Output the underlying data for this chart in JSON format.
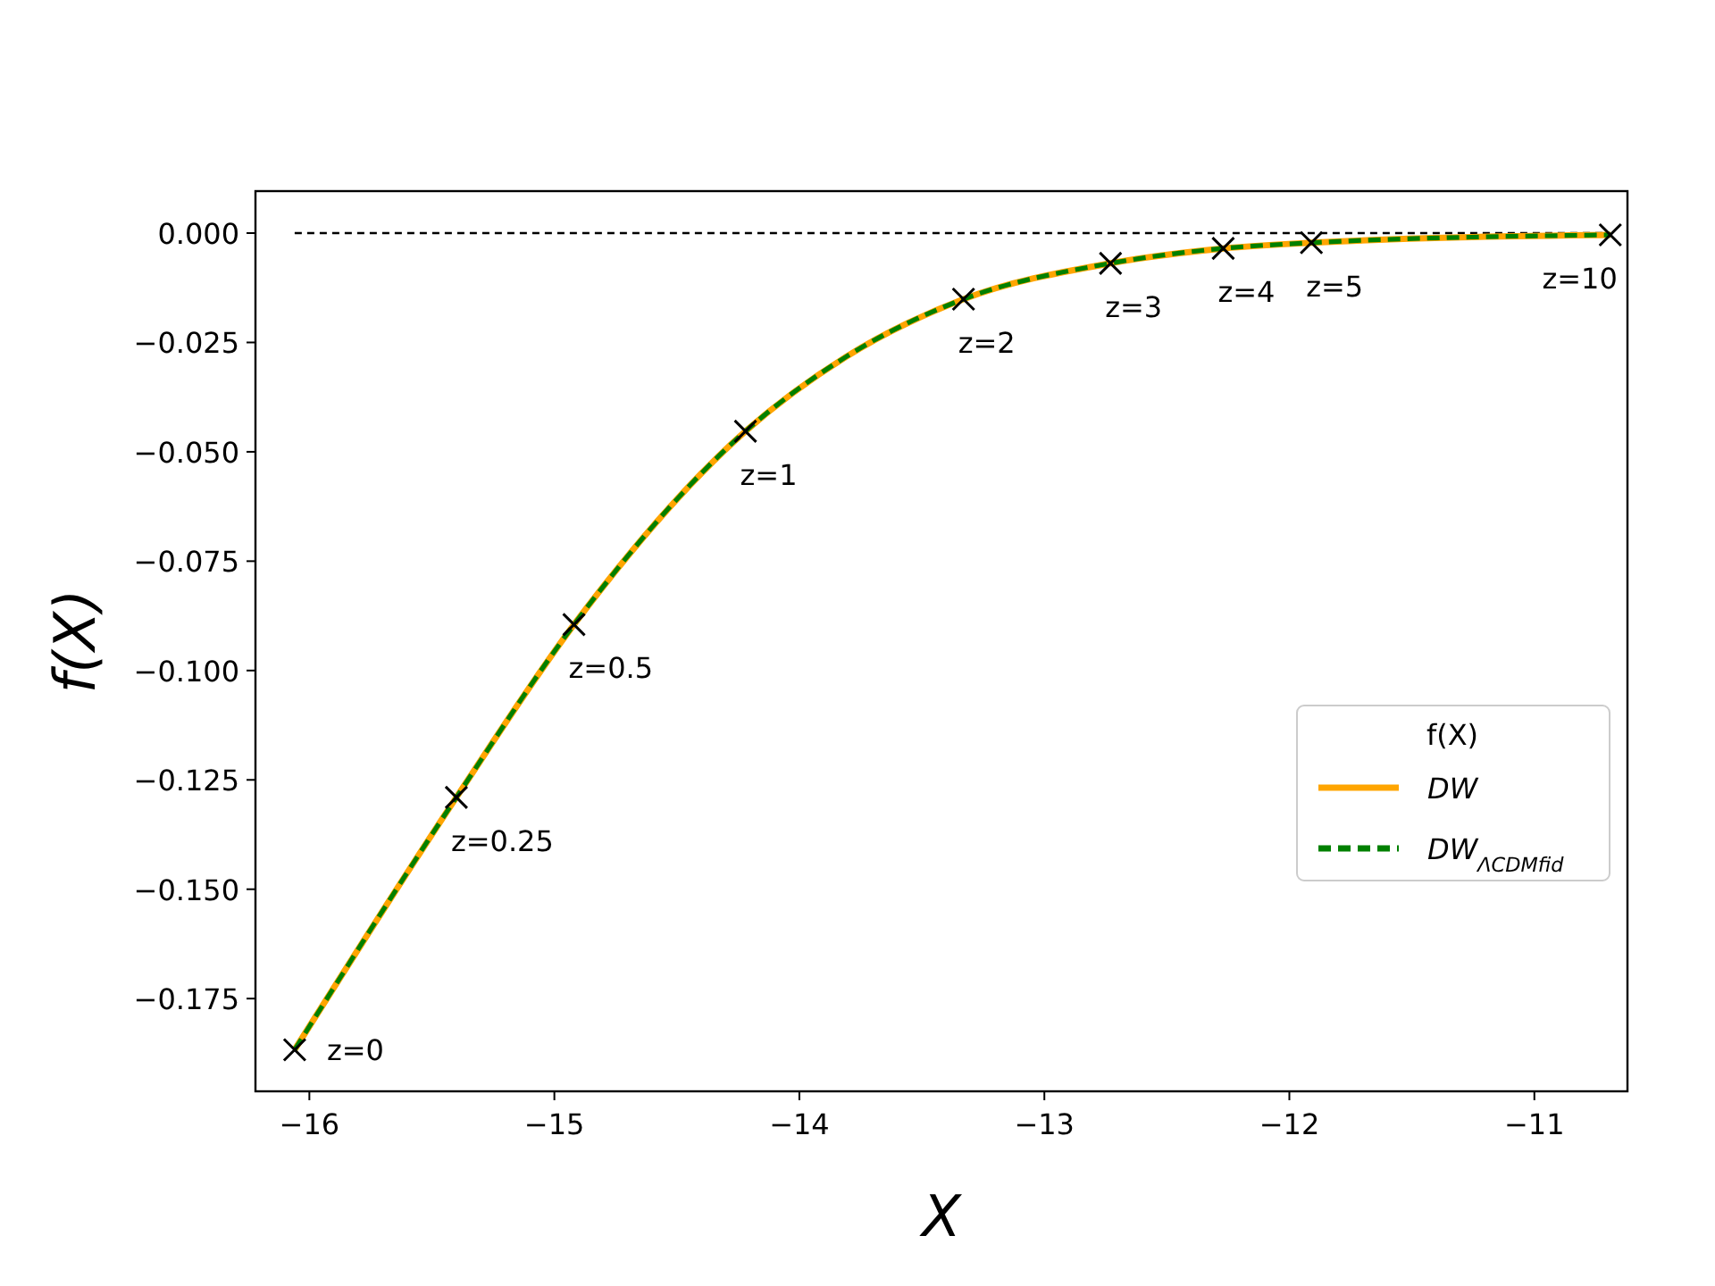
{
  "chart_data": {
    "type": "line",
    "xlabel": "X",
    "ylabel": "f(X)",
    "legend_title": "f(X)",
    "legend": "right",
    "xlim": [
      -16.22,
      -10.62
    ],
    "ylim": [
      -0.1962,
      0.0096
    ],
    "xticks": [
      {
        "value": -16,
        "label": "−16"
      },
      {
        "value": -15,
        "label": "−15"
      },
      {
        "value": -14,
        "label": "−14"
      },
      {
        "value": -13,
        "label": "−13"
      },
      {
        "value": -12,
        "label": "−12"
      },
      {
        "value": -11,
        "label": "−11"
      }
    ],
    "yticks": [
      {
        "value": 0,
        "label": "0.000"
      },
      {
        "value": -0.025,
        "label": "−0.025"
      },
      {
        "value": -0.05,
        "label": "−0.050"
      },
      {
        "value": -0.075,
        "label": "−0.075"
      },
      {
        "value": -0.1,
        "label": "−0.100"
      },
      {
        "value": -0.125,
        "label": "−0.125"
      },
      {
        "value": -0.15,
        "label": "−0.150"
      },
      {
        "value": -0.175,
        "label": "−0.175"
      }
    ],
    "grid": false,
    "series": [
      {
        "line_style": "dashed",
        "color": "#000000",
        "x": [
          -16.06,
          -10.69
        ],
        "values": [
          0,
          0
        ]
      },
      {
        "name": "DW",
        "color": "#ffa500",
        "line_style": "solid",
        "x": [
          -16.06,
          -15.4,
          -14.92,
          -14.22,
          -13.81,
          -13.33,
          -12.73,
          -12.27,
          -11.91,
          -10.69
        ],
        "values": [
          -0.1867,
          -0.129,
          -0.0895,
          -0.0453,
          -0.0283,
          -0.0151,
          -0.0069,
          -0.0035,
          -0.0022,
          -0.0004
        ]
      },
      {
        "name": "DW$_{ΛCDMfid}$",
        "color": "#008000",
        "line_style": "dashed",
        "x": [
          -16.06,
          -15.4,
          -14.92,
          -14.22,
          -13.81,
          -13.33,
          -12.73,
          -12.27,
          -11.91,
          -10.69
        ],
        "values": [
          -0.1867,
          -0.129,
          -0.0895,
          -0.0453,
          -0.0283,
          -0.0151,
          -0.0069,
          -0.0035,
          -0.0022,
          -0.0004
        ]
      },
      {
        "type": "scatter",
        "marker": "cross",
        "color": "#000000",
        "x": [
          -16.06,
          -15.4,
          -14.92,
          -14.22,
          -13.33,
          -12.73,
          -12.27,
          -11.91,
          -10.69
        ],
        "values": [
          -0.1867,
          -0.129,
          -0.0895,
          -0.0453,
          -0.0151,
          -0.0069,
          -0.0035,
          -0.0022,
          -0.0004
        ]
      }
    ],
    "annotations": [
      {
        "text": "z=0",
        "x": -16.06,
        "y": -0.1867
      },
      {
        "text": "z=0.25",
        "x": -15.4,
        "y": -0.129
      },
      {
        "text": "z=0.5",
        "x": -14.92,
        "y": -0.0895
      },
      {
        "text": "z=1",
        "x": -14.22,
        "y": -0.0453
      },
      {
        "text": "z=2",
        "x": -13.33,
        "y": -0.0151
      },
      {
        "text": "z=3",
        "x": -12.73,
        "y": -0.0069
      },
      {
        "text": "z=4",
        "x": -12.27,
        "y": -0.0035
      },
      {
        "text": "z=5",
        "x": -11.91,
        "y": -0.0022
      },
      {
        "text": "z=10",
        "x": -10.69,
        "y": -0.0004
      }
    ]
  }
}
